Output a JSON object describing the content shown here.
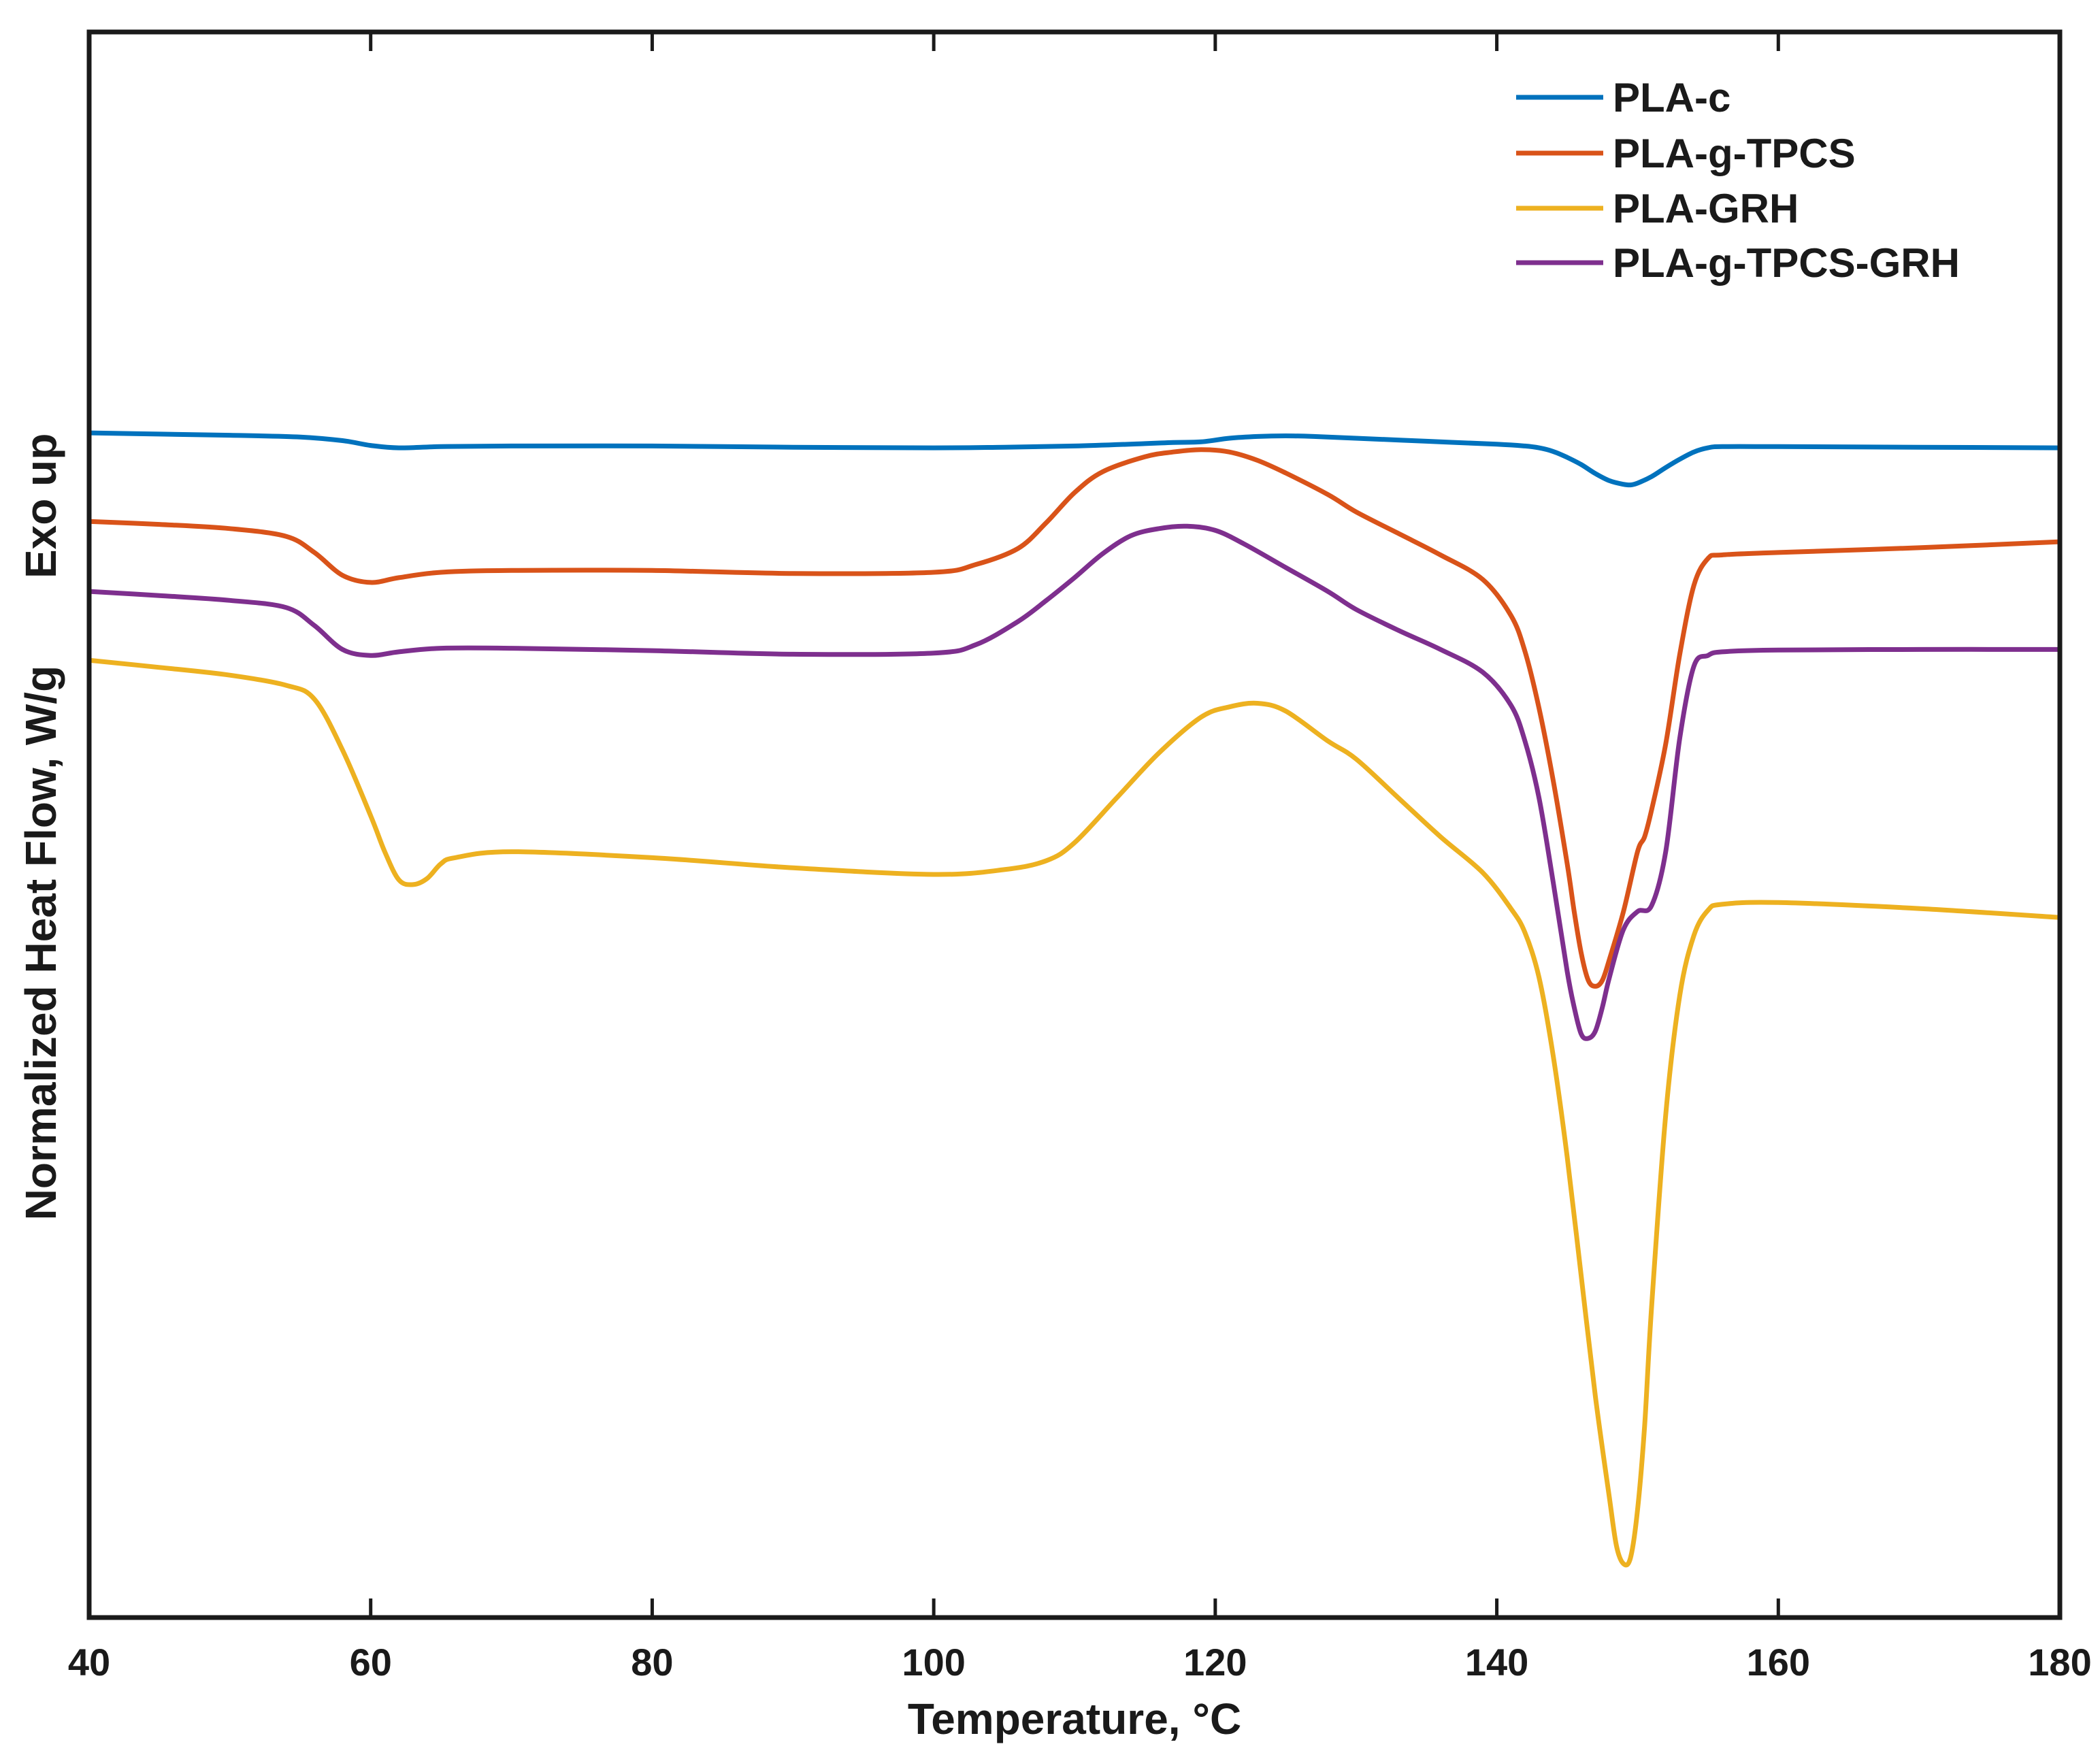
{
  "chart_data": {
    "type": "line",
    "title": "",
    "xlabel": "Temperature, °C",
    "ylabel_parts": {
      "main": "Normalized Heat Flow, W/g",
      "direction": "Exo up"
    },
    "xlim": [
      40,
      180
    ],
    "x_ticks": [
      40,
      60,
      80,
      100,
      120,
      140,
      160,
      180
    ],
    "ylim": [
      -26.0,
      0.5
    ],
    "y_ticks_shown": false,
    "grid": false,
    "legend_position": "top-right",
    "series": [
      {
        "name": "PLA-c",
        "color": "#0072BD",
        "x": [
          40,
          45,
          50,
          55,
          58,
          60,
          62,
          65,
          70,
          80,
          90,
          100,
          105,
          110,
          115,
          117,
          119,
          121,
          123,
          125,
          127,
          130,
          135,
          140,
          142,
          143,
          144,
          145,
          146,
          147,
          148,
          149,
          149.5,
          150,
          151,
          152,
          153,
          154,
          155,
          156,
          160,
          170,
          180
        ],
        "y": [
          -6.2,
          -6.22,
          -6.24,
          -6.27,
          -6.33,
          -6.41,
          -6.45,
          -6.43,
          -6.42,
          -6.42,
          -6.44,
          -6.45,
          -6.44,
          -6.42,
          -6.38,
          -6.36,
          -6.35,
          -6.29,
          -6.26,
          -6.25,
          -6.26,
          -6.29,
          -6.34,
          -6.39,
          -6.42,
          -6.45,
          -6.51,
          -6.61,
          -6.73,
          -6.88,
          -7.0,
          -7.06,
          -7.07,
          -7.04,
          -6.93,
          -6.78,
          -6.64,
          -6.52,
          -6.45,
          -6.43,
          -6.43,
          -6.44,
          -6.45
        ]
      },
      {
        "name": "PLA-g-TPCS",
        "color": "#D95319",
        "x": [
          40,
          45,
          50,
          54,
          56,
          58,
          60,
          62,
          65,
          70,
          80,
          90,
          100,
          103,
          106,
          108,
          110,
          112,
          115,
          117,
          119,
          121,
          123,
          125,
          128,
          130,
          133,
          136,
          139,
          141,
          142,
          143,
          144,
          145,
          145.5,
          146,
          146.5,
          147,
          147.5,
          148,
          149,
          150,
          150.5,
          151,
          152,
          153,
          154,
          155,
          156,
          160,
          170,
          180
        ],
        "y": [
          -7.68,
          -7.73,
          -7.8,
          -7.93,
          -8.2,
          -8.58,
          -8.7,
          -8.62,
          -8.53,
          -8.5,
          -8.5,
          -8.55,
          -8.53,
          -8.4,
          -8.13,
          -7.7,
          -7.2,
          -6.85,
          -6.6,
          -6.52,
          -6.48,
          -6.52,
          -6.66,
          -6.87,
          -7.23,
          -7.52,
          -7.88,
          -8.24,
          -8.65,
          -9.25,
          -9.85,
          -10.8,
          -12.0,
          -13.4,
          -14.2,
          -14.9,
          -15.35,
          -15.45,
          -15.35,
          -15.0,
          -14.2,
          -13.2,
          -12.95,
          -12.5,
          -11.4,
          -9.9,
          -8.75,
          -8.3,
          -8.24,
          -8.2,
          -8.12,
          -8.02
        ]
      },
      {
        "name": "PLA-GRH",
        "color": "#EDB120",
        "x": [
          40,
          45,
          50,
          54,
          56,
          58,
          60,
          61,
          62,
          63,
          64,
          65,
          66,
          70,
          80,
          90,
          100,
          105,
          108,
          110,
          113,
          116,
          119,
          121,
          123,
          125,
          128,
          130,
          133,
          136,
          139,
          141,
          142,
          143,
          144,
          145,
          146,
          147,
          148,
          148.5,
          149,
          149.5,
          150,
          150.5,
          151,
          152,
          153,
          154,
          155,
          156,
          160,
          170,
          180
        ],
        "y": [
          -10.0,
          -10.12,
          -10.25,
          -10.42,
          -10.65,
          -11.5,
          -12.6,
          -13.2,
          -13.67,
          -13.75,
          -13.65,
          -13.4,
          -13.3,
          -13.2,
          -13.3,
          -13.47,
          -13.58,
          -13.5,
          -13.35,
          -13.05,
          -12.3,
          -11.55,
          -10.95,
          -10.78,
          -10.72,
          -10.85,
          -11.35,
          -11.65,
          -12.3,
          -12.95,
          -13.55,
          -14.15,
          -14.55,
          -15.3,
          -16.6,
          -18.3,
          -20.3,
          -22.3,
          -24.0,
          -24.8,
          -25.1,
          -25.0,
          -24.2,
          -22.8,
          -20.8,
          -17.6,
          -15.6,
          -14.6,
          -14.18,
          -14.08,
          -14.05,
          -14.15,
          -14.3
        ]
      },
      {
        "name": "PLA-g-TPCS-GRH",
        "color": "#7E2F8E",
        "x": [
          40,
          45,
          50,
          54,
          56,
          58,
          60,
          62,
          65,
          70,
          80,
          90,
          100,
          103,
          106,
          108,
          110,
          112,
          114,
          116,
          118,
          120,
          122,
          125,
          128,
          130,
          133,
          136,
          139,
          141,
          142,
          143,
          144,
          145,
          145.5,
          146,
          146.5,
          147,
          147.5,
          148,
          149,
          150,
          151,
          152,
          153,
          154,
          155,
          156,
          160,
          170,
          180
        ],
        "y": [
          -8.85,
          -8.92,
          -9.0,
          -9.12,
          -9.42,
          -9.82,
          -9.92,
          -9.86,
          -9.8,
          -9.8,
          -9.84,
          -9.9,
          -9.88,
          -9.74,
          -9.35,
          -9.0,
          -8.62,
          -8.22,
          -7.92,
          -7.8,
          -7.76,
          -7.83,
          -8.05,
          -8.45,
          -8.85,
          -9.15,
          -9.5,
          -9.82,
          -10.2,
          -10.75,
          -11.35,
          -12.3,
          -13.7,
          -15.2,
          -15.8,
          -16.25,
          -16.32,
          -16.2,
          -15.8,
          -15.3,
          -14.5,
          -14.2,
          -14.1,
          -13.2,
          -11.3,
          -10.1,
          -9.92,
          -9.86,
          -9.83,
          -9.82,
          -9.82
        ]
      }
    ]
  }
}
